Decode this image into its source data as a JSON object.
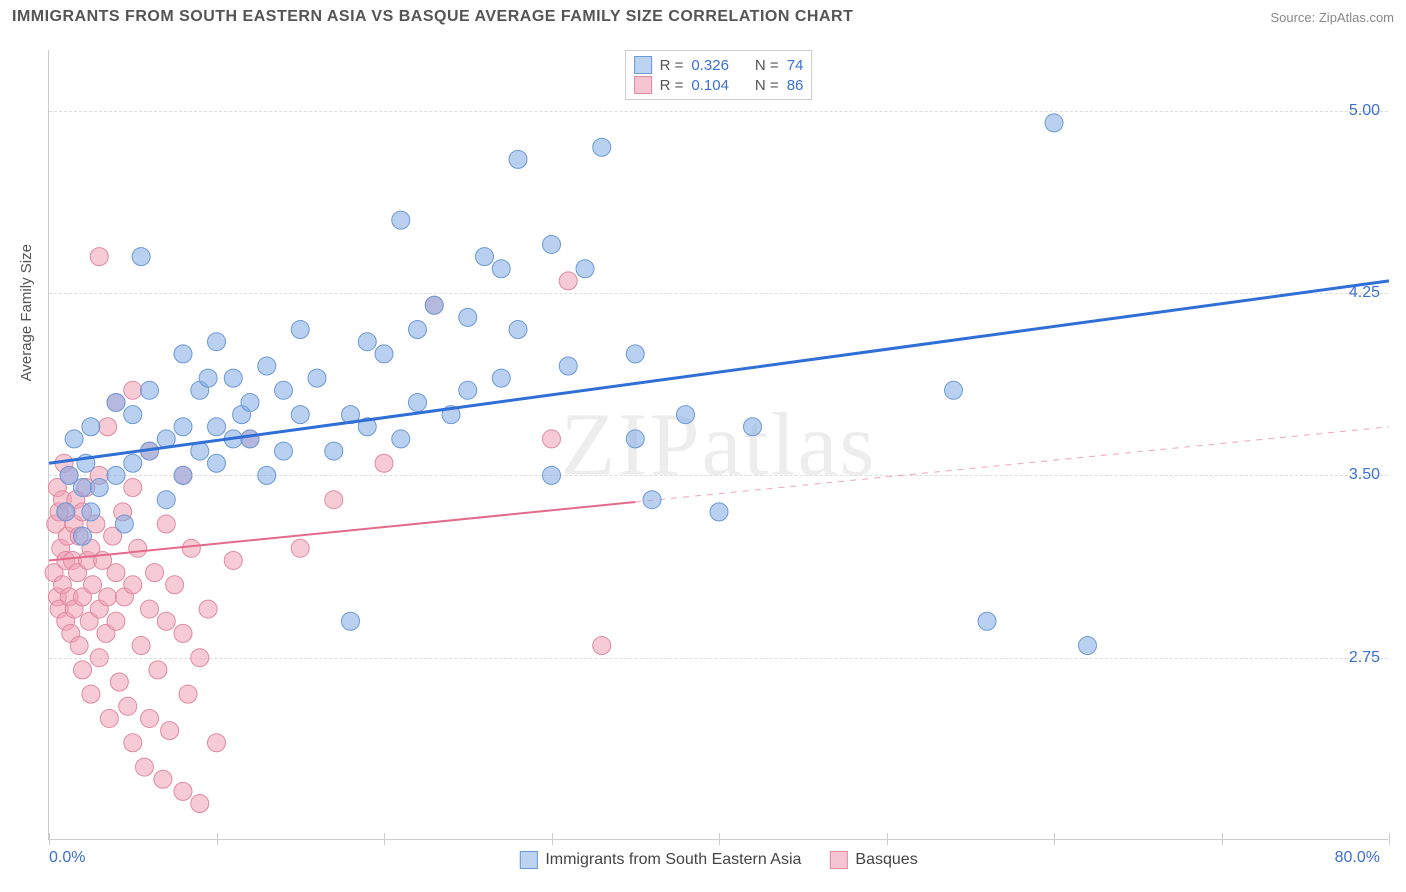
{
  "header": {
    "title": "IMMIGRANTS FROM SOUTH EASTERN ASIA VS BASQUE AVERAGE FAMILY SIZE CORRELATION CHART",
    "source": "Source: ZipAtlas.com"
  },
  "axes": {
    "y_title": "Average Family Size",
    "x_min_label": "0.0%",
    "x_max_label": "80.0%",
    "xlim": [
      0,
      80
    ],
    "ylim": [
      2.0,
      5.25
    ],
    "y_ticks": [
      2.75,
      3.5,
      4.25,
      5.0
    ],
    "y_tick_labels": [
      "2.75",
      "3.50",
      "4.25",
      "5.00"
    ],
    "x_tick_positions": [
      0,
      10,
      20,
      30,
      40,
      50,
      60,
      70,
      80
    ],
    "grid_color": "#dddddd",
    "axis_color": "#cccccc"
  },
  "watermark": "ZIPatlas",
  "series": {
    "blue": {
      "label": "Immigrants from South Eastern Asia",
      "marker_fill": "rgba(130,170,230,0.55)",
      "marker_stroke": "#6a9ad6",
      "marker_radius": 9,
      "line_color": "#2f6fd6",
      "line_width": 3,
      "swatch_fill": "#bcd3f2",
      "swatch_border": "#6a9ad6",
      "trend": {
        "y_at_xmin": 3.55,
        "y_at_xmax": 4.3,
        "solid_until_x": 80
      },
      "R": "0.326",
      "N": "74",
      "points": [
        [
          1,
          3.35
        ],
        [
          1.2,
          3.5
        ],
        [
          1.5,
          3.65
        ],
        [
          2,
          3.25
        ],
        [
          2,
          3.45
        ],
        [
          2.2,
          3.55
        ],
        [
          2.5,
          3.7
        ],
        [
          2.5,
          3.35
        ],
        [
          3,
          3.45
        ],
        [
          4,
          3.8
        ],
        [
          4,
          3.5
        ],
        [
          4.5,
          3.3
        ],
        [
          5,
          3.55
        ],
        [
          5,
          3.75
        ],
        [
          5.5,
          4.4
        ],
        [
          6,
          3.6
        ],
        [
          6,
          3.85
        ],
        [
          7,
          3.65
        ],
        [
          7,
          3.4
        ],
        [
          8,
          3.7
        ],
        [
          8,
          4.0
        ],
        [
          8,
          3.5
        ],
        [
          9,
          3.85
        ],
        [
          9,
          3.6
        ],
        [
          9.5,
          3.9
        ],
        [
          10,
          3.7
        ],
        [
          10,
          4.05
        ],
        [
          10,
          3.55
        ],
        [
          11,
          3.65
        ],
        [
          11,
          3.9
        ],
        [
          11.5,
          3.75
        ],
        [
          12,
          3.65
        ],
        [
          12,
          3.8
        ],
        [
          13,
          3.5
        ],
        [
          13,
          3.95
        ],
        [
          14,
          3.85
        ],
        [
          14,
          3.6
        ],
        [
          15,
          4.1
        ],
        [
          15,
          3.75
        ],
        [
          16,
          3.9
        ],
        [
          17,
          3.6
        ],
        [
          18,
          2.9
        ],
        [
          18,
          3.75
        ],
        [
          19,
          3.7
        ],
        [
          19,
          4.05
        ],
        [
          20,
          4.0
        ],
        [
          21,
          3.65
        ],
        [
          21,
          4.55
        ],
        [
          22,
          4.1
        ],
        [
          22,
          3.8
        ],
        [
          23,
          4.2
        ],
        [
          24,
          3.75
        ],
        [
          25,
          4.15
        ],
        [
          25,
          3.85
        ],
        [
          26,
          4.4
        ],
        [
          27,
          4.35
        ],
        [
          27,
          3.9
        ],
        [
          28,
          4.8
        ],
        [
          28,
          4.1
        ],
        [
          30,
          3.5
        ],
        [
          30,
          4.45
        ],
        [
          31,
          3.95
        ],
        [
          32,
          4.35
        ],
        [
          33,
          4.85
        ],
        [
          35,
          3.65
        ],
        [
          35,
          4.0
        ],
        [
          36,
          3.4
        ],
        [
          38,
          3.75
        ],
        [
          40,
          3.35
        ],
        [
          42,
          3.7
        ],
        [
          54,
          3.85
        ],
        [
          56,
          2.9
        ],
        [
          60,
          4.95
        ],
        [
          62,
          2.8
        ]
      ]
    },
    "pink": {
      "label": "Basques",
      "marker_fill": "rgba(240,160,180,0.55)",
      "marker_stroke": "#e08aa0",
      "marker_radius": 9,
      "line_color": "#e36a8a",
      "line_width": 2,
      "swatch_fill": "#f5c6d2",
      "swatch_border": "#e08aa0",
      "trend": {
        "y_at_xmin": 3.15,
        "y_at_xmax": 3.7,
        "solid_until_x": 35
      },
      "R": "0.104",
      "N": "86",
      "points": [
        [
          0.3,
          3.1
        ],
        [
          0.4,
          3.3
        ],
        [
          0.5,
          3.45
        ],
        [
          0.5,
          3.0
        ],
        [
          0.6,
          2.95
        ],
        [
          0.6,
          3.35
        ],
        [
          0.7,
          3.2
        ],
        [
          0.8,
          3.4
        ],
        [
          0.8,
          3.05
        ],
        [
          0.9,
          3.55
        ],
        [
          1,
          3.15
        ],
        [
          1,
          2.9
        ],
        [
          1,
          3.35
        ],
        [
          1.1,
          3.25
        ],
        [
          1.2,
          3.0
        ],
        [
          1.2,
          3.5
        ],
        [
          1.3,
          2.85
        ],
        [
          1.4,
          3.15
        ],
        [
          1.5,
          3.3
        ],
        [
          1.5,
          2.95
        ],
        [
          1.6,
          3.4
        ],
        [
          1.7,
          3.1
        ],
        [
          1.8,
          2.8
        ],
        [
          1.8,
          3.25
        ],
        [
          2,
          3.35
        ],
        [
          2,
          3.0
        ],
        [
          2,
          2.7
        ],
        [
          2.2,
          3.45
        ],
        [
          2.3,
          3.15
        ],
        [
          2.4,
          2.9
        ],
        [
          2.5,
          3.2
        ],
        [
          2.5,
          2.6
        ],
        [
          2.6,
          3.05
        ],
        [
          2.8,
          3.3
        ],
        [
          3,
          2.95
        ],
        [
          3,
          3.5
        ],
        [
          3,
          2.75
        ],
        [
          3,
          4.4
        ],
        [
          3.2,
          3.15
        ],
        [
          3.4,
          2.85
        ],
        [
          3.5,
          3.7
        ],
        [
          3.5,
          3.0
        ],
        [
          3.6,
          2.5
        ],
        [
          3.8,
          3.25
        ],
        [
          4,
          3.1
        ],
        [
          4,
          3.8
        ],
        [
          4,
          2.9
        ],
        [
          4.2,
          2.65
        ],
        [
          4.4,
          3.35
        ],
        [
          4.5,
          3.0
        ],
        [
          4.7,
          2.55
        ],
        [
          5,
          3.45
        ],
        [
          5,
          3.05
        ],
        [
          5,
          2.4
        ],
        [
          5,
          3.85
        ],
        [
          5.3,
          3.2
        ],
        [
          5.5,
          2.8
        ],
        [
          5.7,
          2.3
        ],
        [
          6,
          3.6
        ],
        [
          6,
          2.95
        ],
        [
          6,
          2.5
        ],
        [
          6.3,
          3.1
        ],
        [
          6.5,
          2.7
        ],
        [
          6.8,
          2.25
        ],
        [
          7,
          3.3
        ],
        [
          7,
          2.9
        ],
        [
          7.2,
          2.45
        ],
        [
          7.5,
          3.05
        ],
        [
          8,
          2.85
        ],
        [
          8,
          2.2
        ],
        [
          8,
          3.5
        ],
        [
          8.3,
          2.6
        ],
        [
          8.5,
          3.2
        ],
        [
          9,
          2.75
        ],
        [
          9,
          2.15
        ],
        [
          9.5,
          2.95
        ],
        [
          10,
          2.4
        ],
        [
          11,
          3.15
        ],
        [
          12,
          3.65
        ],
        [
          15,
          3.2
        ],
        [
          17,
          3.4
        ],
        [
          20,
          3.55
        ],
        [
          23,
          4.2
        ],
        [
          30,
          3.65
        ],
        [
          31,
          4.3
        ],
        [
          33,
          2.8
        ]
      ]
    }
  },
  "legend_stats_labels": {
    "R": "R =",
    "N": "N ="
  }
}
